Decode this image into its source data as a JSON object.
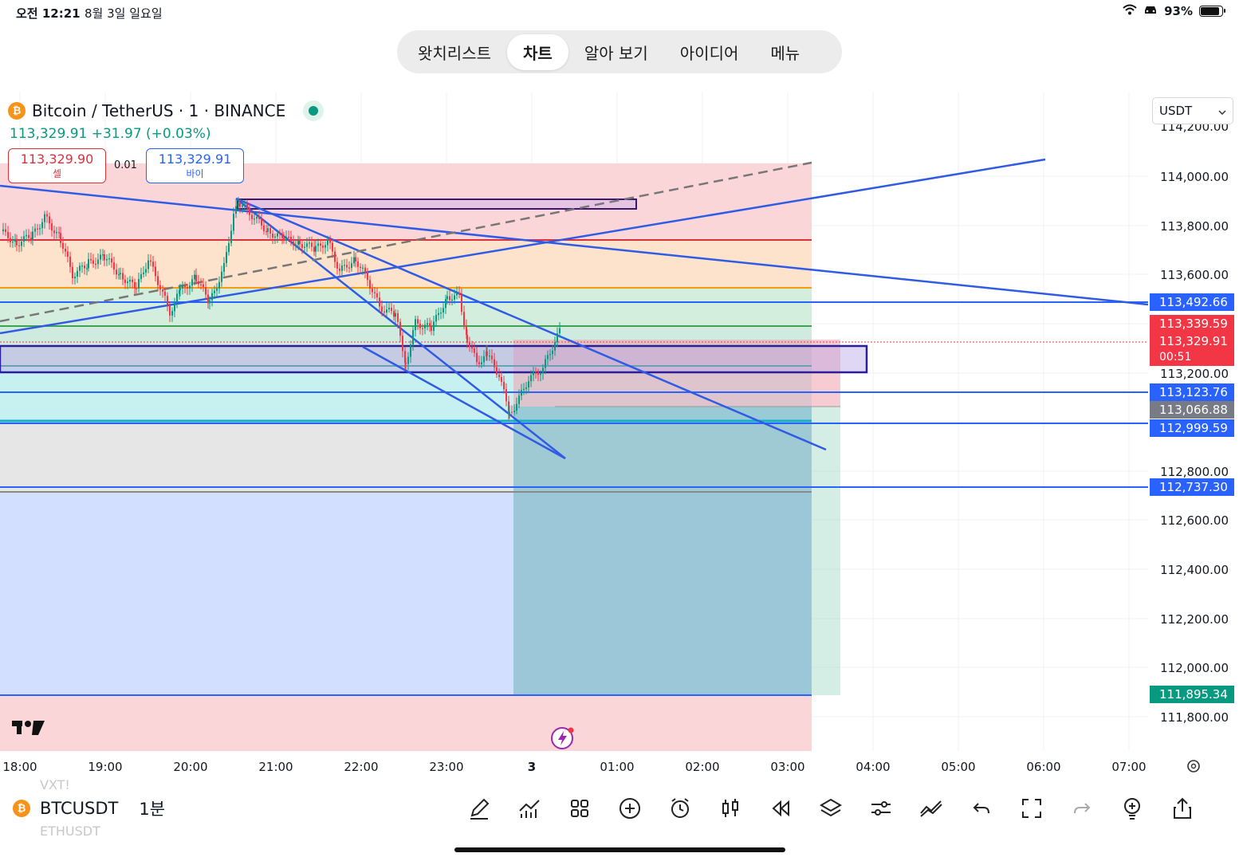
{
  "status": {
    "time": "오전 12:21",
    "date": "8월 3일 일요일",
    "battery": "93%"
  },
  "nav": {
    "tabs": [
      "왓치리스트",
      "차트",
      "알아 보기",
      "아이디어",
      "메뉴"
    ]
  },
  "symbol": {
    "title": "Bitcoin / TetherUS · 1 · BINANCE",
    "price_change": "113,329.91 +31.97 (+0.03%)",
    "sell_price": "113,329.90",
    "sell_label": "셀",
    "spread": "0.01",
    "buy_price": "113,329.91",
    "buy_label": "바이"
  },
  "currency": "USDT",
  "axis": {
    "y_ticks": [
      "114,200.00",
      "114,000.00",
      "113,800.00",
      "113,600.00",
      "113,200.00",
      "112,800.00",
      "112,600.00",
      "112,400.00",
      "112,200.00",
      "112,000.00",
      "111,800.00"
    ],
    "x_ticks": [
      "18:00",
      "19:00",
      "20:00",
      "21:00",
      "22:00",
      "23:00",
      "3",
      "01:00",
      "02:00",
      "03:00",
      "04:00",
      "05:00",
      "06:00",
      "07:00"
    ]
  },
  "price_labels": [
    {
      "text": "113,492.66",
      "color": "#2962ff"
    },
    {
      "text": "113,339.59",
      "color": "#f23645"
    },
    {
      "text": "113,329.91",
      "color": "#f23645"
    },
    {
      "text": "00:51",
      "color": "#f23645"
    },
    {
      "text": "113,123.76",
      "color": "#2962ff"
    },
    {
      "text": "113,066.88",
      "color": "#787b86"
    },
    {
      "text": "112,999.59",
      "color": "#2962ff"
    },
    {
      "text": "112,737.30",
      "color": "#2962ff"
    },
    {
      "text": "111,895.34",
      "color": "#089981"
    }
  ],
  "bottom": {
    "symbol": "BTCUSDT",
    "interval": "1분",
    "ghost_above": "VXT!",
    "ghost_below": "ETHUSDT"
  },
  "colors": {
    "up": "#089981",
    "down": "#f23645",
    "accent": "#2962ff"
  }
}
